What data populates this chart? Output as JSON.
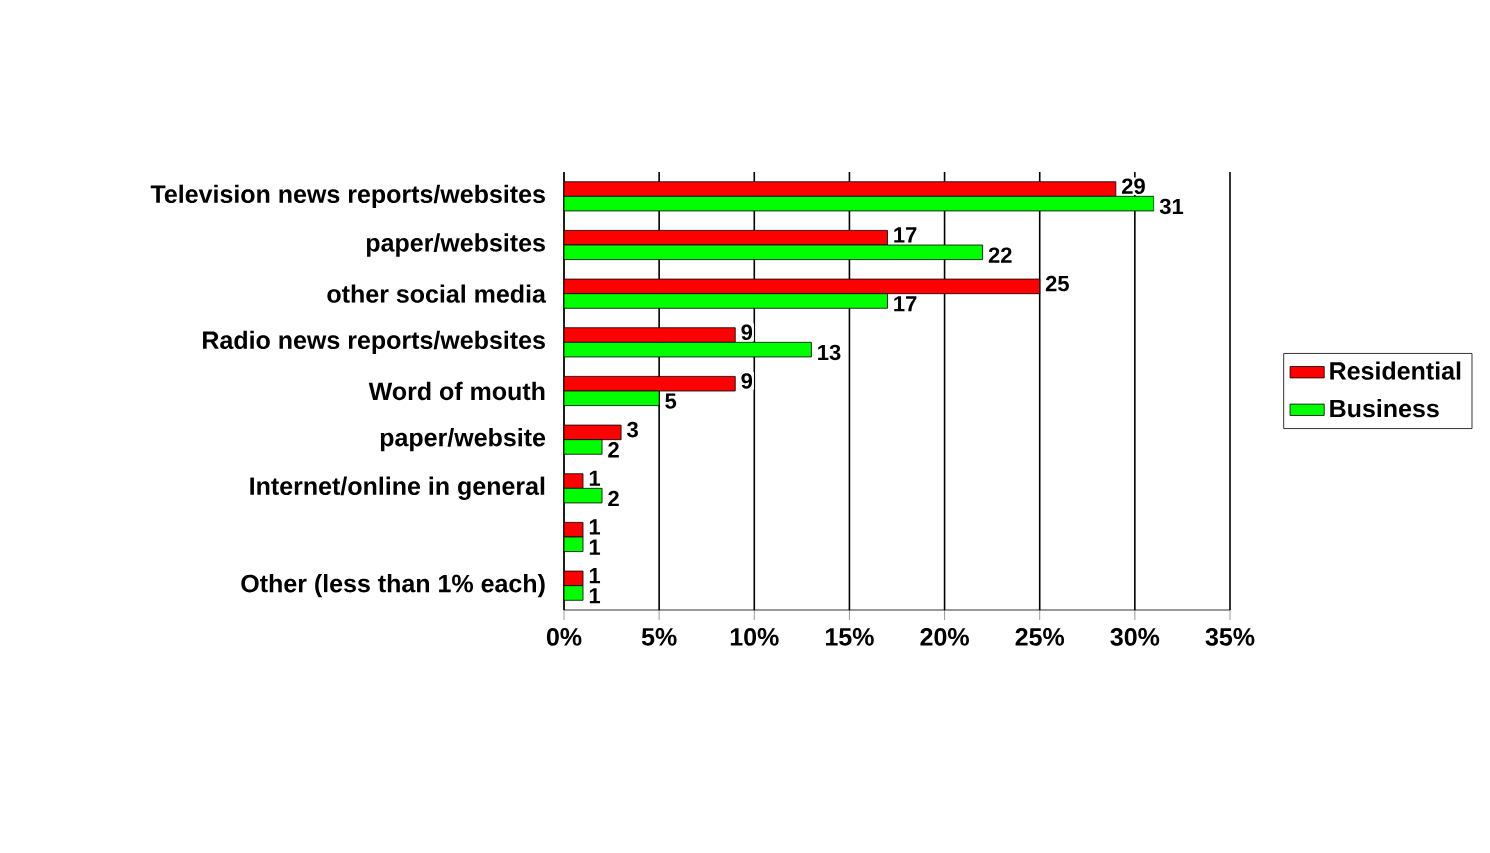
{
  "chart_data": {
    "type": "bar",
    "orientation": "horizontal",
    "categories": [
      "Television news reports/websites",
      "paper/websites",
      "other social media",
      "Radio news reports/websites",
      "Word of mouth",
      "paper/website",
      "Internet/online in general",
      null,
      "Other (less than 1% each)"
    ],
    "series": [
      {
        "name": "Residential",
        "color": "#ff0000",
        "values": [
          29,
          17,
          25,
          9,
          9,
          3,
          1,
          1,
          1
        ]
      },
      {
        "name": "Business",
        "color": "#00ff00",
        "values": [
          31,
          22,
          17,
          13,
          5,
          2,
          2,
          1,
          1
        ]
      }
    ],
    "xlim": [
      0,
      35
    ],
    "xticks": [
      {
        "value": 0,
        "label": "0%"
      },
      {
        "value": 5,
        "label": "5%"
      },
      {
        "value": 10,
        "label": "10%"
      },
      {
        "value": 15,
        "label": "15%"
      },
      {
        "value": 20,
        "label": "20%"
      },
      {
        "value": 25,
        "label": "25%"
      },
      {
        "value": 30,
        "label": "30%"
      },
      {
        "value": 35,
        "label": "35%"
      }
    ],
    "grid": "x",
    "legend": "right",
    "data_labels": true
  }
}
